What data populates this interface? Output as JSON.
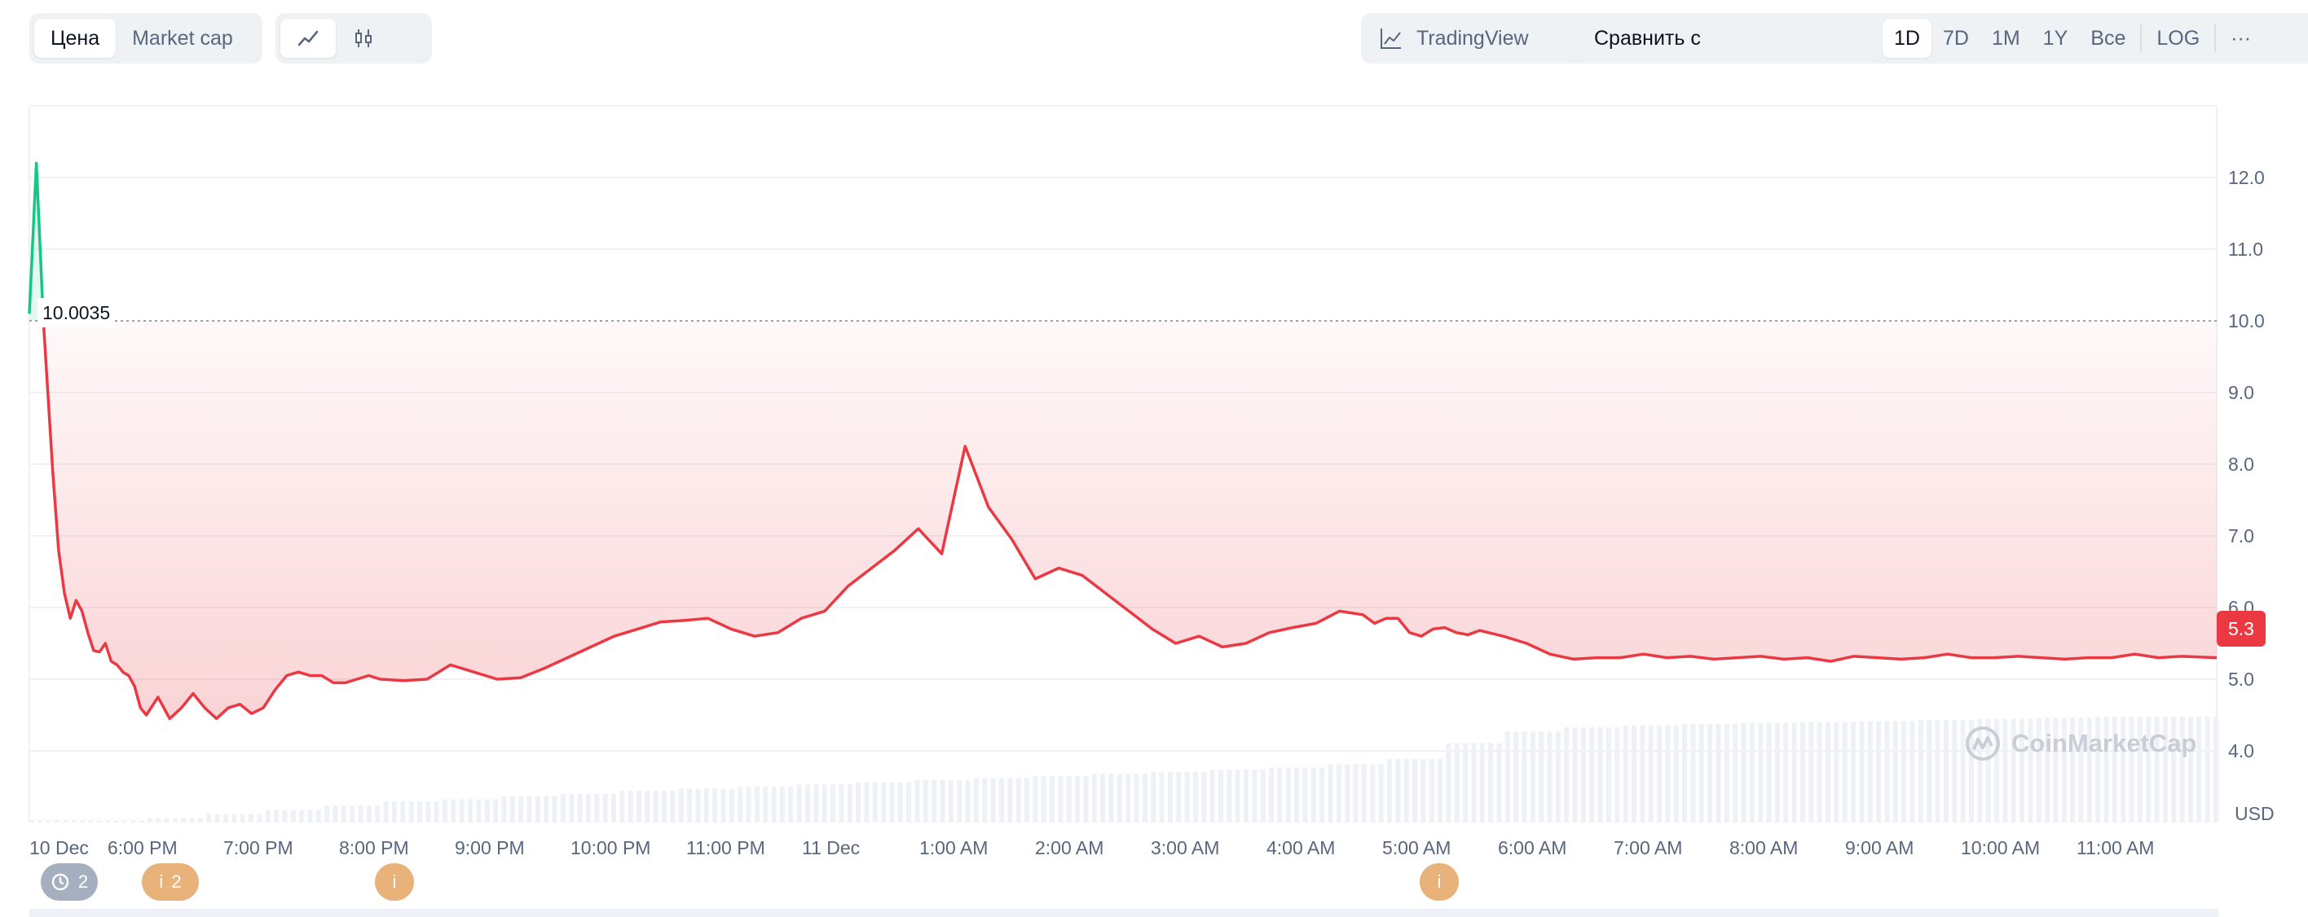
{
  "toolbar": {
    "type_tabs": [
      {
        "label": "Цена",
        "active": true
      },
      {
        "label": "Market cap",
        "active": false
      }
    ],
    "style_tabs": [
      {
        "icon": "line-chart-icon",
        "active": true
      },
      {
        "icon": "candlestick-icon",
        "active": false
      }
    ],
    "tradingview_label": "TradingView",
    "compare_label": "Сравнить с",
    "ranges": [
      "1D",
      "7D",
      "1M",
      "1Y",
      "Все"
    ],
    "active_range": "1D",
    "log_label": "LOG",
    "more_label": "···"
  },
  "chart_data": {
    "type": "line",
    "y_ticks": [
      "12.0",
      "11.0",
      "10.0",
      "9.0",
      "8.0",
      "7.0",
      "6.0",
      "5.0",
      "4.0"
    ],
    "ylim": [
      3.0,
      13.0
    ],
    "x_ticks": [
      "10 Dec",
      "6:00 PM",
      "7:00 PM",
      "8:00 PM",
      "9:00 PM",
      "10:00 PM",
      "11:00 PM",
      "11 Dec",
      "1:00 AM",
      "2:00 AM",
      "3:00 AM",
      "4:00 AM",
      "5:00 AM",
      "6:00 AM",
      "7:00 AM",
      "8:00 AM",
      "9:00 AM",
      "10:00 AM",
      "11:00 AM"
    ],
    "reference_price": "10.0035",
    "current_price": "5.3",
    "currency": "USD",
    "colors": {
      "up": "#16c784",
      "down": "#ea3943",
      "fill": "#ea3943",
      "volume": "#eef1f6"
    },
    "x": [
      0,
      0.06,
      0.12,
      0.2,
      0.25,
      0.3,
      0.35,
      0.4,
      0.45,
      0.5,
      0.55,
      0.6,
      0.65,
      0.7,
      0.75,
      0.8,
      0.85,
      0.9,
      0.95,
      1.0,
      1.1,
      1.2,
      1.3,
      1.4,
      1.5,
      1.6,
      1.7,
      1.8,
      1.9,
      2.0,
      2.1,
      2.2,
      2.3,
      2.4,
      2.5,
      2.6,
      2.7,
      2.8,
      2.9,
      3.0,
      3.2,
      3.4,
      3.5,
      3.6,
      3.8,
      4.0,
      4.2,
      4.4,
      4.6,
      4.8,
      5.0,
      5.2,
      5.4,
      5.6,
      5.8,
      6.0,
      6.2,
      6.4,
      6.6,
      6.8,
      7.0,
      7.2,
      7.4,
      7.6,
      7.8,
      8.0,
      8.2,
      8.4,
      8.6,
      8.8,
      9.0,
      9.2,
      9.4,
      9.6,
      9.8,
      10.0,
      10.2,
      10.4,
      10.6,
      10.8,
      11.0,
      11.2,
      11.4,
      11.5,
      11.6,
      11.7,
      11.8,
      11.9,
      12.0,
      12.1,
      12.2,
      12.3,
      12.4,
      12.6,
      12.8,
      13.0,
      13.2,
      13.4,
      13.6,
      13.8,
      14.0,
      14.2,
      14.4,
      14.6,
      14.8,
      15.0,
      15.2,
      15.4,
      15.6,
      15.8,
      16.0,
      16.2,
      16.4,
      16.6,
      16.8,
      17.0,
      17.2,
      17.4,
      17.6,
      17.8,
      18.0,
      18.2,
      18.4,
      18.7
    ],
    "y": [
      10.1,
      12.2,
      10.0,
      7.9,
      6.8,
      6.2,
      5.85,
      6.1,
      5.95,
      5.65,
      5.4,
      5.38,
      5.5,
      5.25,
      5.2,
      5.1,
      5.05,
      4.9,
      4.6,
      4.5,
      4.75,
      4.45,
      4.6,
      4.8,
      4.6,
      4.45,
      4.6,
      4.65,
      4.52,
      4.6,
      4.85,
      5.05,
      5.1,
      5.05,
      5.05,
      4.95,
      4.95,
      5.0,
      5.05,
      5.0,
      4.98,
      5.0,
      5.1,
      5.2,
      5.1,
      5.0,
      5.02,
      5.15,
      5.3,
      5.45,
      5.6,
      5.7,
      5.8,
      5.82,
      5.85,
      5.7,
      5.6,
      5.65,
      5.85,
      5.95,
      6.3,
      6.55,
      6.8,
      7.1,
      6.75,
      8.25,
      7.4,
      6.95,
      6.4,
      6.55,
      6.45,
      6.2,
      5.95,
      5.7,
      5.5,
      5.6,
      5.45,
      5.5,
      5.65,
      5.72,
      5.78,
      5.95,
      5.9,
      5.78,
      5.85,
      5.85,
      5.65,
      5.6,
      5.7,
      5.72,
      5.65,
      5.62,
      5.68,
      5.6,
      5.5,
      5.35,
      5.28,
      5.3,
      5.3,
      5.35,
      5.3,
      5.32,
      5.28,
      5.3,
      5.32,
      5.28,
      5.3,
      5.25,
      5.32,
      5.3,
      5.28,
      5.3,
      5.35,
      5.3,
      5.3,
      5.32,
      5.3,
      5.28,
      5.3,
      5.3,
      5.35,
      5.3,
      5.32,
      5.3
    ],
    "volume_level": [
      0.02,
      0.02,
      0.04,
      0.08,
      0.12,
      0.16,
      0.2,
      0.22,
      0.25,
      0.27,
      0.3,
      0.32,
      0.34,
      0.36,
      0.38,
      0.4,
      0.42,
      0.44,
      0.46,
      0.48,
      0.5,
      0.52,
      0.55,
      0.6,
      0.75,
      0.86,
      0.9,
      0.92,
      0.93,
      0.94,
      0.95,
      0.96,
      0.97,
      0.98,
      0.99,
      1.0,
      1.0,
      1.0
    ]
  },
  "markers": [
    {
      "label": "2",
      "icon": "history-icon",
      "kind": "gray"
    },
    {
      "label": "2",
      "icon": "info-icon",
      "kind": "orange"
    },
    {
      "label": "",
      "icon": "info-icon",
      "kind": "orange"
    },
    {
      "label": "",
      "icon": "info-icon",
      "kind": "orange"
    }
  ],
  "watermark": "CoinMarketCap"
}
